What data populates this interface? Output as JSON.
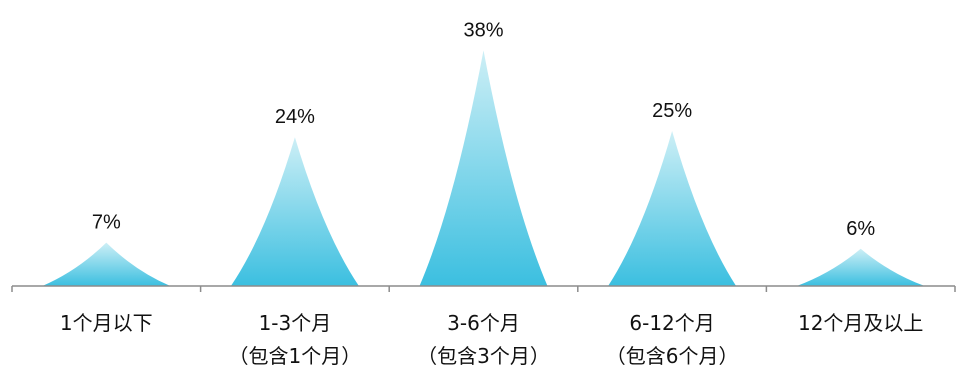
{
  "chart_data": {
    "type": "area",
    "title": "",
    "xlabel": "",
    "ylabel": "",
    "ylim": [
      0,
      40
    ],
    "grid": false,
    "categories": [
      [
        "1个月以下"
      ],
      [
        "1-3个月",
        "（包含1个月）"
      ],
      [
        "3-6个月",
        "（包含3个月）"
      ],
      [
        "6-12个月",
        "（包含6个月）"
      ],
      [
        "12个月及以上"
      ]
    ],
    "values": [
      7,
      24,
      38,
      25,
      6
    ],
    "data_labels": [
      "7%",
      "24%",
      "38%",
      "25%",
      "6%"
    ],
    "colors": {
      "fill_top": "#cdeff6",
      "fill_bottom": "#3bbfe0",
      "axis": "#8c8c8c"
    }
  }
}
